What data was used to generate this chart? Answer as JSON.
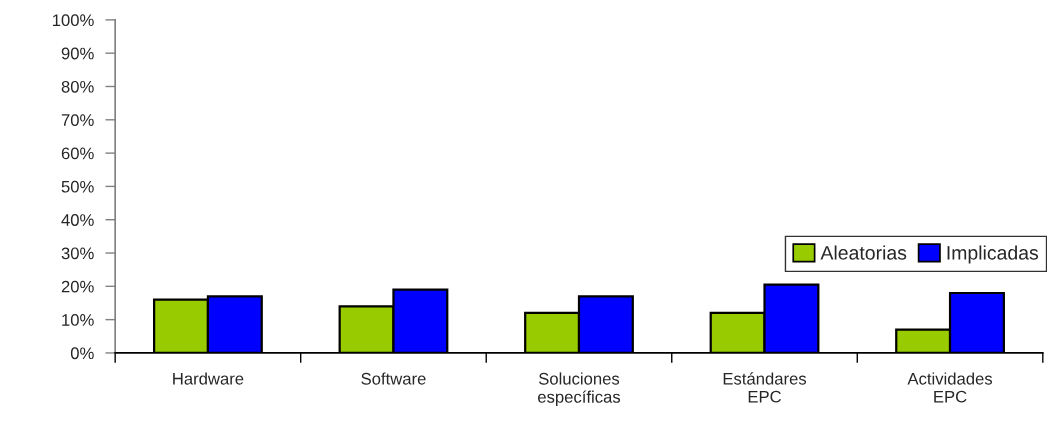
{
  "chart_data": {
    "type": "bar",
    "categories": [
      "Hardware",
      "Software",
      "Soluciones\nespecíficas",
      "Estándares\nEPC",
      "Actividades\nEPC"
    ],
    "series": [
      {
        "name": "Aleatorias",
        "color": "#99cc00",
        "values": [
          16,
          14,
          12,
          12,
          7
        ]
      },
      {
        "name": "Implicadas",
        "color": "#0000ff",
        "values": [
          17,
          19,
          17,
          20.5,
          18
        ]
      }
    ],
    "ylim": [
      0,
      100
    ],
    "yticks": [
      {
        "value": 0,
        "label": "0%"
      },
      {
        "value": 10,
        "label": "10%"
      },
      {
        "value": 20,
        "label": "20%"
      },
      {
        "value": 30,
        "label": "30%"
      },
      {
        "value": 40,
        "label": "40%"
      },
      {
        "value": 50,
        "label": "50%"
      },
      {
        "value": 60,
        "label": "60%"
      },
      {
        "value": 70,
        "label": "70%"
      },
      {
        "value": 80,
        "label": "80%"
      },
      {
        "value": 90,
        "label": "90%"
      },
      {
        "value": 100,
        "label": "100%"
      }
    ],
    "grid": false,
    "legend": "right"
  }
}
